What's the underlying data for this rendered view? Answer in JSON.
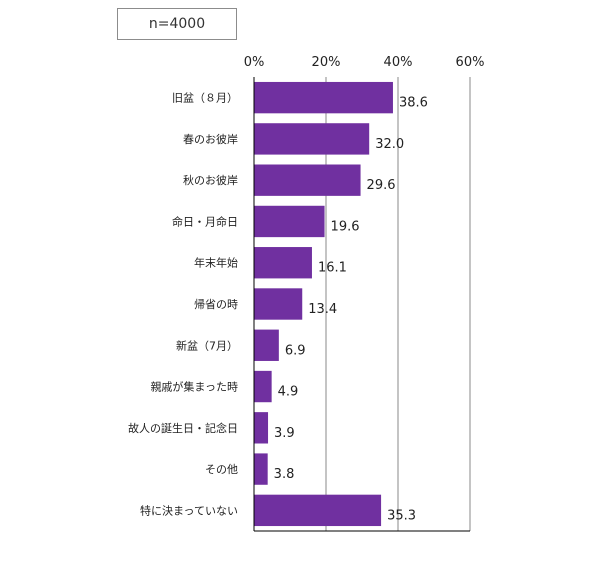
{
  "sample_label": "n=4000",
  "colors": {
    "bar": "#7030a0",
    "grid": "#b0b0b0",
    "axis": "#000000"
  },
  "chart_data": {
    "type": "bar",
    "orientation": "horizontal",
    "title": "",
    "xlabel": "",
    "ylabel": "",
    "xlim": [
      0,
      60
    ],
    "x_ticks": [
      0,
      20,
      40,
      60
    ],
    "x_tick_labels": [
      "0%",
      "20%",
      "40%",
      "60%"
    ],
    "grid": true,
    "categories": [
      "旧盆（８月）",
      "春のお彼岸",
      "秋のお彼岸",
      "命日・月命日",
      "年末年始",
      "帰省の時",
      "新盆（7月）",
      "親戚が集まった時",
      "故人の誕生日・記念日",
      "その他",
      "特に決まっていない"
    ],
    "values": [
      38.6,
      32.0,
      29.6,
      19.6,
      16.1,
      13.4,
      6.9,
      4.9,
      3.9,
      3.8,
      35.3
    ],
    "value_labels": [
      "38.6",
      "32.0",
      "29.6",
      "19.6",
      "16.1",
      "13.4",
      "6.9",
      "4.9",
      "3.9",
      "3.8",
      "35.3"
    ]
  }
}
